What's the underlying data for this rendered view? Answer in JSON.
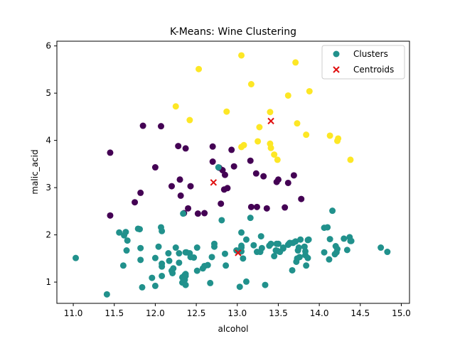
{
  "chart_data": {
    "type": "scatter",
    "title": "K-Means: Wine Clustering",
    "xlabel": "alcohol",
    "ylabel": "malic_acid",
    "xlim": [
      10.8,
      15.1
    ],
    "ylim": [
      0.55,
      6.1
    ],
    "xticks": [
      "11.0",
      "11.5",
      "12.0",
      "12.5",
      "13.0",
      "13.5",
      "14.0",
      "14.5",
      "15.0"
    ],
    "yticks": [
      "1",
      "2",
      "3",
      "4",
      "5",
      "6"
    ],
    "grid": false,
    "legend": {
      "placement": "top-right",
      "entries": [
        {
          "label": "Clusters",
          "marker": "circle",
          "color": "#21918c"
        },
        {
          "label": "Centroids",
          "marker": "x",
          "color": "#e01010"
        }
      ]
    },
    "cluster_colors": [
      "#440154",
      "#21918c",
      "#fde725"
    ],
    "series": [
      {
        "cluster": 0,
        "color": "#440154",
        "points": [
          [
            11.45,
            3.74
          ],
          [
            11.45,
            2.41
          ],
          [
            11.75,
            2.69
          ],
          [
            11.82,
            2.89
          ],
          [
            11.85,
            4.31
          ],
          [
            12.0,
            3.43
          ],
          [
            12.07,
            4.3
          ],
          [
            12.2,
            3.03
          ],
          [
            12.28,
            3.88
          ],
          [
            12.3,
            3.17
          ],
          [
            12.31,
            2.83
          ],
          [
            12.35,
            2.46
          ],
          [
            12.37,
            3.83
          ],
          [
            12.4,
            2.56
          ],
          [
            12.43,
            3.03
          ],
          [
            12.52,
            2.45
          ],
          [
            12.6,
            2.46
          ],
          [
            12.7,
            3.87
          ],
          [
            12.7,
            3.55
          ],
          [
            12.78,
            3.42
          ],
          [
            12.8,
            2.66
          ],
          [
            12.82,
            3.37
          ],
          [
            12.84,
            2.96
          ],
          [
            12.85,
            3.27
          ],
          [
            12.88,
            2.99
          ],
          [
            12.93,
            3.8
          ],
          [
            12.96,
            3.45
          ],
          [
            13.16,
            3.57
          ],
          [
            13.17,
            2.59
          ],
          [
            13.23,
            3.3
          ],
          [
            13.24,
            2.59
          ],
          [
            13.32,
            3.24
          ],
          [
            13.36,
            2.56
          ],
          [
            13.48,
            3.12
          ],
          [
            13.5,
            3.17
          ],
          [
            13.58,
            2.58
          ],
          [
            13.62,
            3.1
          ],
          [
            13.69,
            3.26
          ],
          [
            13.78,
            2.76
          ]
        ]
      },
      {
        "cluster": 1,
        "color": "#21918c",
        "points": [
          [
            11.03,
            1.51
          ],
          [
            11.41,
            0.74
          ],
          [
            11.56,
            2.05
          ],
          [
            11.61,
            1.35
          ],
          [
            11.62,
            1.99
          ],
          [
            11.64,
            2.06
          ],
          [
            11.65,
            1.67
          ],
          [
            11.66,
            1.88
          ],
          [
            11.79,
            2.13
          ],
          [
            11.81,
            2.12
          ],
          [
            11.82,
            1.47
          ],
          [
            11.82,
            1.72
          ],
          [
            11.84,
            0.89
          ],
          [
            11.96,
            1.09
          ],
          [
            12.0,
            0.92
          ],
          [
            12.0,
            1.51
          ],
          [
            12.04,
            1.75
          ],
          [
            12.07,
            2.16
          ],
          [
            12.08,
            1.13
          ],
          [
            12.08,
            1.33
          ],
          [
            12.08,
            2.08
          ],
          [
            12.08,
            1.39
          ],
          [
            12.16,
            1.61
          ],
          [
            12.17,
            1.45
          ],
          [
            12.2,
            1.24
          ],
          [
            12.21,
            1.19
          ],
          [
            12.22,
            1.29
          ],
          [
            12.25,
            1.73
          ],
          [
            12.29,
            1.61
          ],
          [
            12.29,
            1.41
          ],
          [
            12.33,
            0.99
          ],
          [
            12.33,
            1.1
          ],
          [
            12.34,
            2.45
          ],
          [
            12.36,
            1.15
          ],
          [
            12.36,
            1.05
          ],
          [
            12.37,
            0.94
          ],
          [
            12.37,
            1.63
          ],
          [
            12.37,
            1.17
          ],
          [
            12.37,
            1.13
          ],
          [
            12.38,
            1.63
          ],
          [
            12.42,
            1.61
          ],
          [
            12.43,
            1.53
          ],
          [
            12.47,
            1.52
          ],
          [
            12.51,
            1.73
          ],
          [
            12.51,
            1.24
          ],
          [
            12.58,
            1.29
          ],
          [
            12.6,
            1.34
          ],
          [
            12.64,
            1.36
          ],
          [
            12.67,
            0.98
          ],
          [
            12.69,
            1.53
          ],
          [
            12.72,
            1.75
          ],
          [
            12.72,
            1.81
          ],
          [
            12.77,
            3.43
          ],
          [
            12.81,
            2.31
          ],
          [
            12.85,
            1.6
          ],
          [
            12.86,
            1.35
          ],
          [
            12.99,
            1.67
          ],
          [
            13.03,
            0.9
          ],
          [
            13.05,
            1.65
          ],
          [
            13.05,
            1.73
          ],
          [
            13.05,
            1.77
          ],
          [
            13.05,
            2.05
          ],
          [
            13.07,
            1.5
          ],
          [
            13.11,
            1.9
          ],
          [
            13.11,
            1.01
          ],
          [
            13.16,
            2.36
          ],
          [
            13.2,
            1.78
          ],
          [
            13.24,
            1.64
          ],
          [
            13.28,
            1.64
          ],
          [
            13.29,
            1.97
          ],
          [
            13.3,
            1.72
          ],
          [
            13.34,
            0.94
          ],
          [
            13.39,
            1.77
          ],
          [
            13.41,
            1.81
          ],
          [
            13.45,
            1.55
          ],
          [
            13.47,
            1.67
          ],
          [
            13.48,
            1.81
          ],
          [
            13.49,
            1.66
          ],
          [
            13.5,
            1.81
          ],
          [
            13.52,
            1.64
          ],
          [
            13.56,
            1.71
          ],
          [
            13.56,
            1.73
          ],
          [
            13.62,
            1.79
          ],
          [
            13.63,
            1.81
          ],
          [
            13.64,
            1.83
          ],
          [
            13.67,
            1.25
          ],
          [
            13.68,
            1.83
          ],
          [
            13.71,
            1.86
          ],
          [
            13.72,
            1.43
          ],
          [
            13.73,
            1.5
          ],
          [
            13.74,
            1.67
          ],
          [
            13.75,
            1.73
          ],
          [
            13.76,
            1.53
          ],
          [
            13.77,
            1.9
          ],
          [
            13.82,
            1.75
          ],
          [
            13.83,
            1.57
          ],
          [
            13.83,
            1.65
          ],
          [
            13.84,
            1.35
          ],
          [
            13.86,
            1.51
          ],
          [
            13.86,
            1.89
          ],
          [
            13.87,
            1.9
          ],
          [
            14.06,
            1.63
          ],
          [
            14.06,
            2.15
          ],
          [
            14.1,
            2.16
          ],
          [
            14.12,
            1.48
          ],
          [
            14.13,
            1.91
          ],
          [
            14.16,
            2.51
          ],
          [
            14.19,
            1.59
          ],
          [
            14.2,
            1.76
          ],
          [
            14.21,
            1.63
          ],
          [
            14.22,
            1.7
          ],
          [
            14.3,
            1.92
          ],
          [
            14.34,
            1.68
          ],
          [
            14.37,
            1.95
          ],
          [
            14.38,
            1.87
          ],
          [
            14.39,
            1.87
          ],
          [
            14.75,
            1.73
          ],
          [
            14.83,
            1.64
          ]
        ]
      },
      {
        "cluster": 2,
        "color": "#fde725",
        "points": [
          [
            12.25,
            4.72
          ],
          [
            12.42,
            4.43
          ],
          [
            12.53,
            5.51
          ],
          [
            12.87,
            4.61
          ],
          [
            13.05,
            5.8
          ],
          [
            13.05,
            3.86
          ],
          [
            13.08,
            3.9
          ],
          [
            13.17,
            5.19
          ],
          [
            13.25,
            3.98
          ],
          [
            13.27,
            4.28
          ],
          [
            13.4,
            4.6
          ],
          [
            13.4,
            3.93
          ],
          [
            13.41,
            3.84
          ],
          [
            13.45,
            3.7
          ],
          [
            13.49,
            3.59
          ],
          [
            13.62,
            4.95
          ],
          [
            13.71,
            5.65
          ],
          [
            13.73,
            4.36
          ],
          [
            13.84,
            4.12
          ],
          [
            13.88,
            5.04
          ],
          [
            14.13,
            4.1
          ],
          [
            14.22,
            3.99
          ],
          [
            14.23,
            4.04
          ],
          [
            14.38,
            3.59
          ]
        ]
      }
    ],
    "centroids": [
      {
        "cluster": 0,
        "x": 12.71,
        "y": 3.11
      },
      {
        "cluster": 1,
        "x": 13.01,
        "y": 1.62
      },
      {
        "cluster": 2,
        "x": 13.41,
        "y": 4.41
      }
    ]
  }
}
